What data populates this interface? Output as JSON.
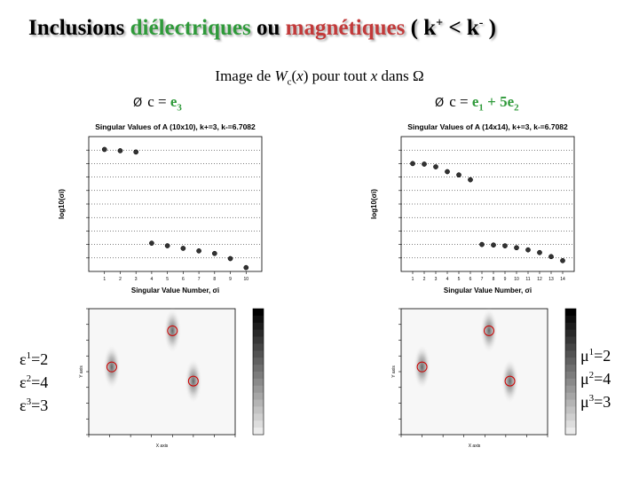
{
  "slide": {
    "title_parts": {
      "p1": "Inclusions ",
      "p2": "diélectriques",
      "p3": " ou ",
      "p4": "magnétiques",
      "p5": " ( k",
      "p6": "+",
      "p7": " < k",
      "p8": "-",
      "p9": " )"
    },
    "subtitle": {
      "pre": "Image de ",
      "w": "W",
      "wsub": "c",
      "mid1": "(",
      "x1": "x",
      "mid2": ") pour tout ",
      "x2": "x",
      "post": " dans Ω"
    },
    "left_case": {
      "arrow": "Ø",
      "prefix": "c = ",
      "value": "e",
      "value_sub": "3"
    },
    "right_case": {
      "arrow": "Ø",
      "prefix": "c = ",
      "v1": "e",
      "v1_sub": "1",
      "plus": " + 5e",
      "v2_sub": "2"
    },
    "eps": [
      {
        "sym": "ε",
        "sup": "1",
        "val": "=2"
      },
      {
        "sym": "ε",
        "sup": "2",
        "val": "=4"
      },
      {
        "sym": "ε",
        "sup": "3",
        "val": "=3"
      }
    ],
    "mu": [
      {
        "sym": "μ",
        "sup": "1",
        "val": "=2"
      },
      {
        "sym": "μ",
        "sup": "2",
        "val": "=4"
      },
      {
        "sym": "μ",
        "sup": "3",
        "val": "=3"
      }
    ]
  },
  "chart_data": [
    {
      "type": "scatter",
      "title": "Singular Values of A (10x10),  k+=3,  k-=6.7082",
      "xlabel": "Singular Value Number, σi",
      "ylabel": "log10(σi)",
      "x": [
        1,
        2,
        3,
        4,
        5,
        6,
        7,
        8,
        9,
        10
      ],
      "y": [
        0.0,
        -0.1,
        -0.2,
        -7.3,
        -7.5,
        -7.7,
        -7.9,
        -8.1,
        -8.5,
        -9.2
      ],
      "xlim": [
        0,
        11
      ],
      "ylim": [
        -9.5,
        1
      ],
      "xticks": [
        "1",
        "2",
        "3",
        "4",
        "5",
        "6",
        "7",
        "8",
        "9",
        "10"
      ]
    },
    {
      "type": "scatter",
      "title": "Singular Values of A (14x14),  k+=3,  k-=6.7082",
      "xlabel": "Singular Value Number, σi",
      "ylabel": "log10(σi)",
      "x": [
        1,
        2,
        3,
        4,
        5,
        6,
        7,
        8,
        9,
        10,
        11,
        12,
        13,
        14
      ],
      "y": [
        0.0,
        -0.02,
        -0.12,
        -0.3,
        -0.42,
        -0.6,
        -3.0,
        -3.02,
        -3.05,
        -3.12,
        -3.2,
        -3.3,
        -3.45,
        -3.6
      ],
      "xlim": [
        0,
        15
      ],
      "ylim": [
        -4,
        1
      ],
      "xticks": [
        "1",
        "2",
        "3",
        "4",
        "5",
        "6",
        "7",
        "8",
        "9",
        "10",
        "11",
        "12",
        "13",
        "14"
      ]
    },
    {
      "type": "heatmap",
      "xlabel": "X axis",
      "ylabel": "Y axis",
      "inclusions": [
        {
          "x": 1.1,
          "y": 4.3
        },
        {
          "x": 4.0,
          "y": 6.6
        },
        {
          "x": 5.0,
          "y": 3.4
        }
      ]
    },
    {
      "type": "heatmap",
      "xlabel": "X axis",
      "ylabel": "Y axis",
      "inclusions": [
        {
          "x": 1.0,
          "y": 4.3
        },
        {
          "x": 4.2,
          "y": 6.6
        },
        {
          "x": 5.2,
          "y": 3.4
        }
      ]
    }
  ]
}
